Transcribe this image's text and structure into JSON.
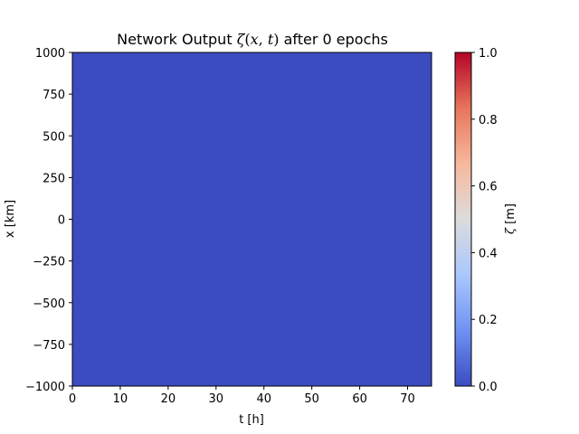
{
  "chart_data": {
    "type": "heatmap",
    "title": {
      "prefix": "Network Output ",
      "math_zeta": "ζ",
      "math_open": "(",
      "math_x": "x",
      "math_comma": ", ",
      "math_t": "t",
      "math_close": ")",
      "suffix": " after 0 epochs"
    },
    "xlabel": "t [h]",
    "ylabel": "x [km]",
    "colorbar_label": "ζ [m]",
    "colorbar_label_parts": {
      "symbol": "ζ",
      "unit": " [m]"
    },
    "xlim": [
      0,
      75
    ],
    "ylim": [
      -1000,
      1000
    ],
    "xticks": [
      0,
      10,
      20,
      30,
      40,
      50,
      60,
      70
    ],
    "xtick_labels": [
      "0",
      "10",
      "20",
      "30",
      "40",
      "50",
      "60",
      "70"
    ],
    "yticks": [
      -1000,
      -750,
      -500,
      -250,
      0,
      250,
      500,
      750,
      1000
    ],
    "ytick_labels": [
      "−1000",
      "−750",
      "−500",
      "−250",
      "0",
      "250",
      "500",
      "750",
      "1000"
    ],
    "colorbar_range": [
      0.0,
      1.0
    ],
    "colorbar_ticks": [
      0.0,
      0.2,
      0.4,
      0.6,
      0.8,
      1.0
    ],
    "colorbar_tick_labels": [
      "0.0",
      "0.2",
      "0.4",
      "0.6",
      "0.8",
      "1.0"
    ],
    "colormap": "coolwarm",
    "colormap_stops": [
      "#3b4cc0",
      "#6f92f3",
      "#aac7fd",
      "#dddcdc",
      "#f7b89c",
      "#e7755b",
      "#b40426"
    ],
    "field_value": 0.0,
    "field_color": "#3b4cc0",
    "grid": false
  }
}
